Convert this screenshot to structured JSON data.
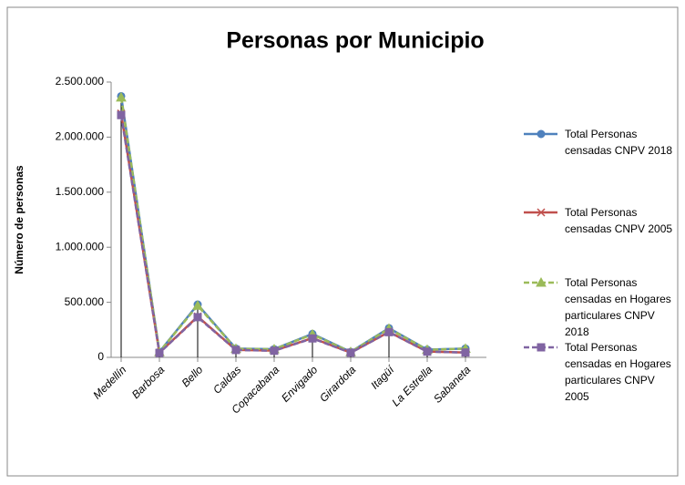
{
  "chart_data": {
    "type": "line",
    "title": "Personas por Municipio",
    "y_label": "Número de personas",
    "categories": [
      "Medellín",
      "Barbosa",
      "Bello",
      "Caldas",
      "Copacabana",
      "Envigado",
      "Girardota",
      "Itagüí",
      "La Estrella",
      "Sabaneta"
    ],
    "series": [
      {
        "name": "Total Personas censadas CNPV 2018",
        "color": "#4f81bd",
        "marker": "circle",
        "dashed": false,
        "values": [
          2372000,
          50000,
          480000,
          80000,
          75000,
          213000,
          50000,
          265000,
          70000,
          80000
        ]
      },
      {
        "name": "Total Personas censadas CNPV 2005",
        "color": "#c0504d",
        "marker": "x",
        "dashed": false,
        "values": [
          2214000,
          42000,
          371000,
          68000,
          61000,
          175000,
          43000,
          231000,
          53000,
          44000
        ]
      },
      {
        "name": "Total Personas censadas en Hogares particulares CNPV 2018",
        "color": "#9bbb59",
        "marker": "triangle",
        "dashed": true,
        "values": [
          2360000,
          49000,
          470000,
          78000,
          74000,
          208000,
          49000,
          260000,
          69000,
          79000
        ]
      },
      {
        "name": "Total Personas censadas en Hogares particulares CNPV 2005",
        "color": "#8064a2",
        "marker": "square",
        "dashed": true,
        "values": [
          2200000,
          40000,
          365000,
          67000,
          60000,
          172000,
          42000,
          229000,
          52000,
          44000
        ]
      }
    ],
    "ylim": [
      0,
      2500000
    ],
    "yticks": [
      0,
      {
        "value": 500000,
        "label": "500.000"
      },
      {
        "value": 1000000,
        "label": "1.000.000"
      },
      {
        "value": 1500000,
        "label": "1.500.000"
      },
      {
        "value": 2000000,
        "label": "2.000.000"
      },
      {
        "value": 2500000,
        "label": "2.500.000"
      }
    ],
    "drop_lines": true,
    "legend": "right"
  }
}
